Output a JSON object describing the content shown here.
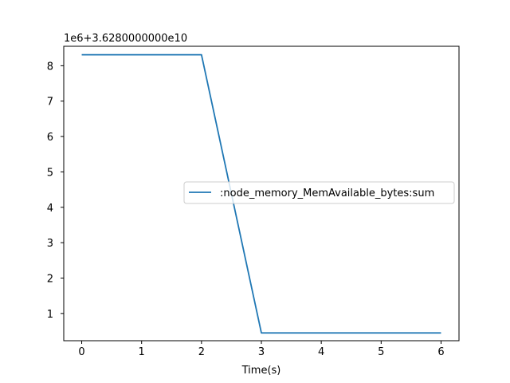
{
  "chart_data": {
    "type": "line",
    "title": "",
    "xlabel": "Time(s)",
    "ylabel": "",
    "offset_text": "1e6+3.6280000000e10",
    "xlim": [
      -0.3,
      6.3
    ],
    "ylim": [
      0.23,
      8.55
    ],
    "xticks": [
      0,
      1,
      2,
      3,
      4,
      5,
      6
    ],
    "yticks": [
      1,
      2,
      3,
      4,
      5,
      6,
      7,
      8
    ],
    "grid": false,
    "legend_position": "center-right",
    "series": [
      {
        "name": ":node_memory_MemAvailable_bytes:sum",
        "color": "#1f77b4",
        "x": [
          0,
          1,
          2,
          3,
          4,
          5,
          6
        ],
        "y": [
          8.31,
          8.31,
          8.31,
          0.45,
          0.45,
          0.45,
          0.45
        ]
      }
    ]
  }
}
